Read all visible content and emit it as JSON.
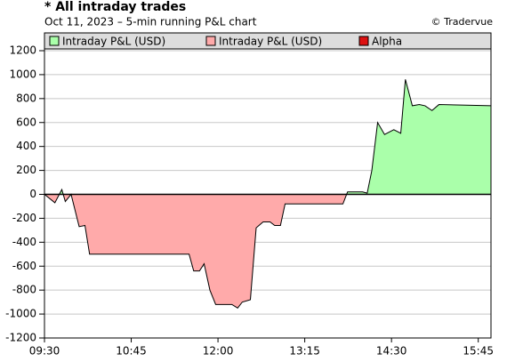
{
  "chart_data": {
    "type": "area",
    "title": "* All intraday trades",
    "subtitle": "Oct 11, 2023 – 5-min running P&L chart",
    "credit": "© Tradervue",
    "legend": [
      {
        "name": "Intraday P&L (USD)",
        "color": "#aaffaa"
      },
      {
        "name": "Intraday P&L (USD)",
        "color": "#ffaaaa"
      },
      {
        "name": "Alpha",
        "color": "#dd1111"
      }
    ],
    "line_color": "#000000",
    "x": [
      570,
      579,
      585,
      588,
      593,
      600,
      605,
      609,
      695,
      699,
      704,
      708,
      713,
      718,
      732,
      737,
      741,
      748,
      753,
      759,
      765,
      769,
      774,
      778,
      828,
      832,
      845,
      849,
      853,
      858,
      864,
      872,
      878,
      882,
      888,
      894,
      899,
      905,
      911,
      956
    ],
    "values": [
      0,
      -70,
      40,
      -60,
      0,
      -270,
      -260,
      -500,
      -500,
      -640,
      -640,
      -580,
      -800,
      -920,
      -920,
      -950,
      -900,
      -880,
      -280,
      -230,
      -230,
      -260,
      -260,
      -80,
      -80,
      20,
      20,
      10,
      200,
      600,
      500,
      540,
      510,
      960,
      740,
      750,
      740,
      700,
      750,
      740
    ],
    "xlim": [
      570,
      956
    ],
    "xticks": [
      {
        "value": 570,
        "label": "09:30"
      },
      {
        "value": 645,
        "label": "10:45"
      },
      {
        "value": 720,
        "label": "12:00"
      },
      {
        "value": 795,
        "label": "13:15"
      },
      {
        "value": 870,
        "label": "14:30"
      },
      {
        "value": 945,
        "label": "15:45"
      }
    ],
    "ylim": [
      -1200,
      1200
    ],
    "yticks": [
      -1200,
      -1000,
      -800,
      -600,
      -400,
      -200,
      0,
      200,
      400,
      600,
      800,
      1000,
      1200
    ],
    "grid": true
  }
}
